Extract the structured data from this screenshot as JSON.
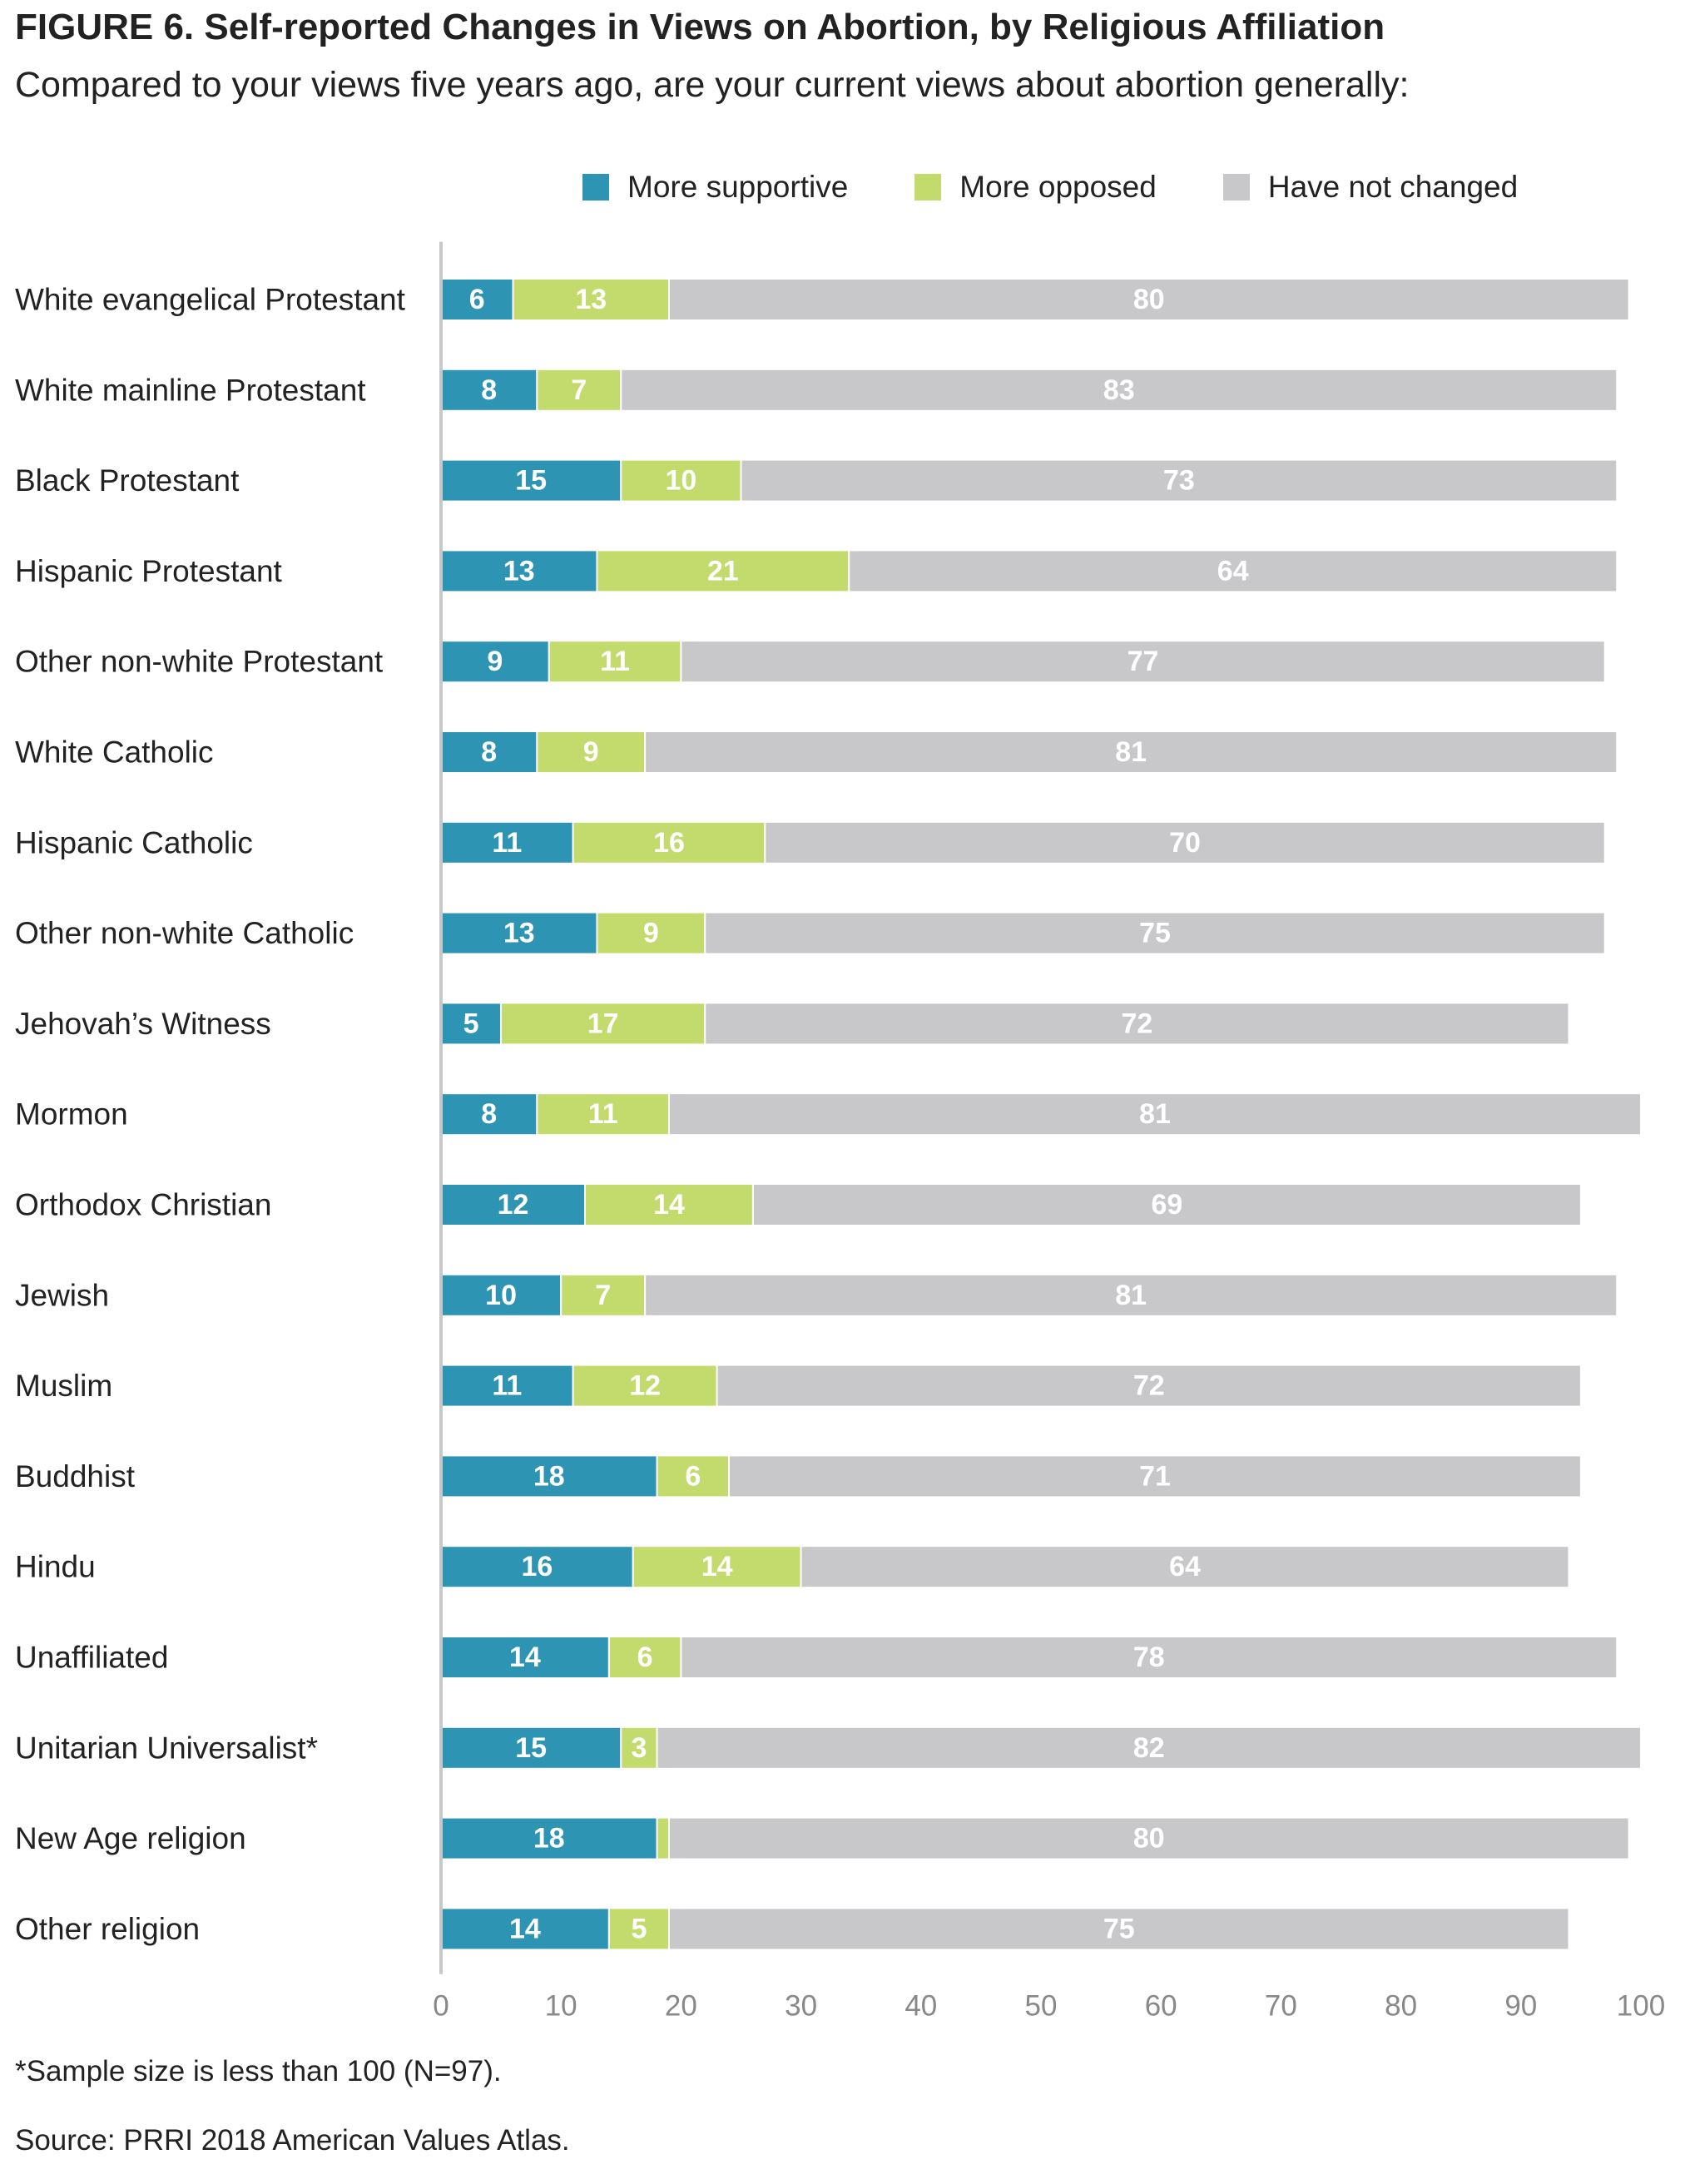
{
  "figure": {
    "title": "FIGURE 6.  Self-reported Changes in Views on Abortion, by Religious Affiliation",
    "subtitle": "Compared to your views five years ago, are your current views about abortion generally:",
    "note": "*Sample size is less than 100 (N=97).",
    "source": "Source: PRRI 2018 American Values Atlas."
  },
  "legend": {
    "placement": "top-right",
    "items": [
      {
        "label": "More supportive",
        "color": "#2e94b4"
      },
      {
        "label": "More opposed",
        "color": "#c3da6c"
      },
      {
        "label": "Have not changed",
        "color": "#c8c8ca"
      }
    ]
  },
  "chart_data": {
    "type": "bar",
    "orientation": "horizontal",
    "stacked": true,
    "xlim": [
      0,
      100
    ],
    "x_ticks": [
      0,
      10,
      20,
      30,
      40,
      50,
      60,
      70,
      80,
      90,
      100
    ],
    "grid": false,
    "categories": [
      "White evangelical Protestant",
      "White mainline Protestant",
      "Black Protestant",
      "Hispanic Protestant",
      "Other non-white Protestant",
      "White Catholic",
      "Hispanic Catholic",
      "Other non-white Catholic",
      "Jehovah’s Witness",
      "Mormon",
      "Orthodox Christian",
      "Jewish",
      "Muslim",
      "Buddhist",
      "Hindu",
      "Unaffiliated",
      "Unitarian Universalist*",
      "New Age religion",
      "Other religion"
    ],
    "series": [
      {
        "name": "More supportive",
        "color": "#2e94b4",
        "label_color": "#ffffff",
        "values": [
          6,
          8,
          15,
          13,
          9,
          8,
          11,
          13,
          5,
          8,
          12,
          10,
          11,
          18,
          16,
          14,
          15,
          18,
          14
        ],
        "labels": [
          "6",
          "8",
          "15",
          "13",
          "9",
          "8",
          "11",
          "13",
          "5",
          "8",
          "12",
          "10",
          "11",
          "18",
          "16",
          "14",
          "15",
          "18",
          "14"
        ]
      },
      {
        "name": "More opposed",
        "color": "#c3da6c",
        "label_color": "#ffffff",
        "values": [
          13,
          7,
          10,
          21,
          11,
          9,
          16,
          9,
          17,
          11,
          14,
          7,
          12,
          6,
          14,
          6,
          3,
          1,
          5
        ],
        "labels": [
          "13",
          "7",
          "10",
          "21",
          "11",
          "9",
          "16",
          "9",
          "17",
          "11",
          "14",
          "7",
          "12",
          "6",
          "14",
          "6",
          "3",
          "",
          "5"
        ]
      },
      {
        "name": "Have not changed",
        "color": "#c8c8ca",
        "label_color": "#ffffff",
        "values": [
          80,
          83,
          73,
          64,
          77,
          81,
          70,
          75,
          72,
          81,
          69,
          81,
          72,
          71,
          64,
          78,
          82,
          80,
          75
        ],
        "labels": [
          "80",
          "83",
          "73",
          "64",
          "77",
          "81",
          "70",
          "75",
          "72",
          "81",
          "69",
          "81",
          "72",
          "71",
          "64",
          "78",
          "82",
          "80",
          "75"
        ]
      }
    ]
  }
}
